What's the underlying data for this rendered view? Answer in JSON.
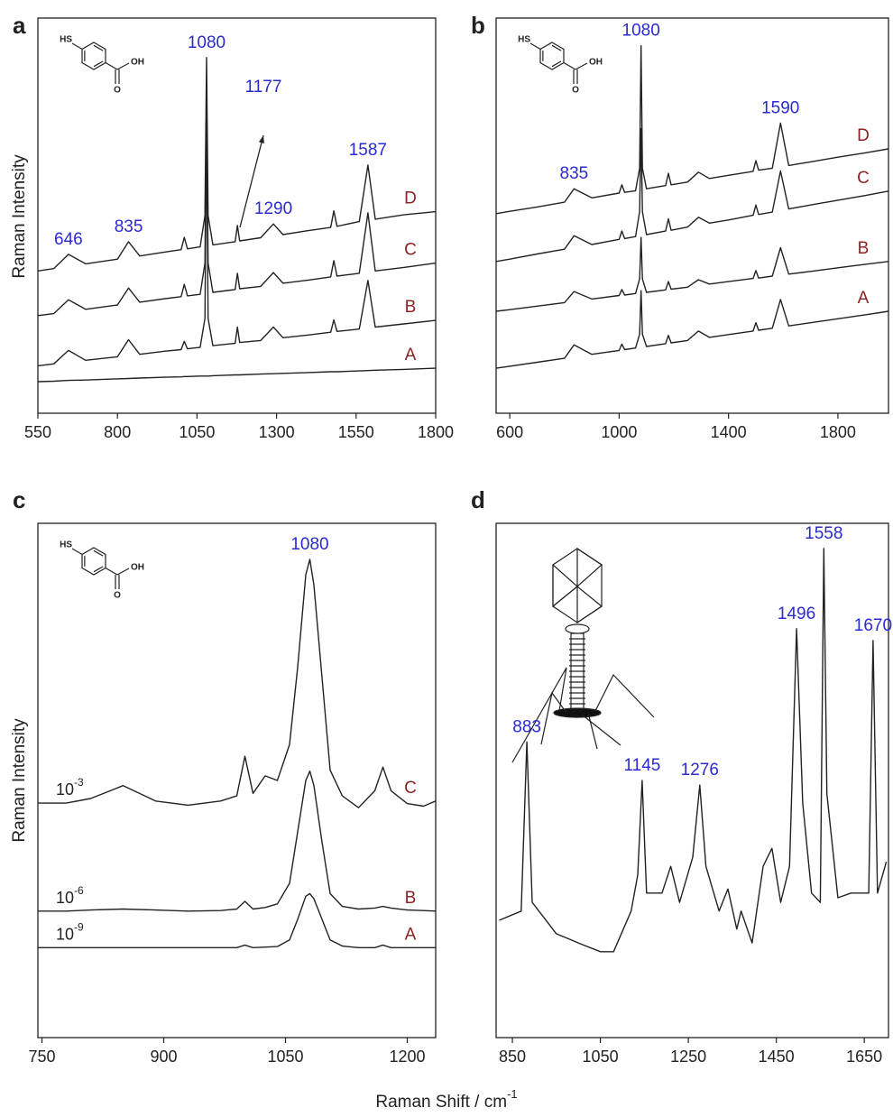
{
  "shared_x_label": {
    "text": "Raman Shift / cm",
    "superscript": "-1"
  },
  "chart_data": [
    {
      "type": "line",
      "panel_label": "a",
      "ylabel": "Raman Intensity",
      "molecule": [
        "HS",
        "OH",
        "O"
      ],
      "peak_label_color": "#2a2ad0",
      "series_label_color": "#8b2323",
      "xlim": [
        550,
        1800
      ],
      "xticks": [
        550,
        800,
        1050,
        1300,
        1550,
        1800
      ],
      "ylim": [
        0,
        100
      ],
      "x": [
        550,
        600,
        646,
        700,
        800,
        835,
        870,
        950,
        1000,
        1010,
        1020,
        1060,
        1075,
        1080,
        1085,
        1100,
        1170,
        1177,
        1184,
        1250,
        1290,
        1320,
        1400,
        1470,
        1480,
        1490,
        1560,
        1587,
        1610,
        1700,
        1800
      ],
      "peak_labels": [
        646,
        835,
        1080,
        1177,
        1290,
        1587
      ],
      "series": [
        {
          "name": "D",
          "color": "#222222",
          "values": [
            36,
            36.6,
            40.2,
            37.8,
            39,
            43.4,
            39.8,
            40.8,
            41.4,
            44.5,
            41.6,
            42.1,
            50,
            90,
            50,
            42.6,
            43.4,
            47.5,
            43.6,
            44.4,
            47.9,
            45.2,
            46.2,
            47,
            51.2,
            47.3,
            48.5,
            62.8,
            49.1,
            50.2,
            51
          ]
        },
        {
          "name": "C",
          "color": "#222222",
          "values": [
            24.7,
            25.2,
            28.7,
            26.3,
            27.4,
            31.7,
            28.1,
            29,
            29.5,
            32.6,
            29.7,
            30.1,
            38,
            82,
            38,
            30.6,
            31.3,
            35.4,
            31.5,
            32.1,
            35.6,
            32.9,
            33.7,
            34.5,
            38.6,
            34.7,
            35.4,
            50.7,
            36,
            36.9,
            38
          ]
        },
        {
          "name": "B",
          "color": "#222222",
          "values": [
            12,
            12.5,
            15.9,
            13.4,
            14.3,
            18.6,
            14.9,
            15.7,
            16.1,
            18.2,
            16.3,
            16.7,
            24,
            72,
            24,
            17.1,
            17.7,
            21.8,
            17.9,
            18.4,
            21.8,
            19.1,
            19.8,
            20.5,
            23.6,
            20.7,
            21.3,
            33.6,
            21.8,
            22.6,
            23.5
          ]
        },
        {
          "name": "A",
          "color": "#222222",
          "values": [
            8,
            8.1,
            8.3,
            8.4,
            8.7,
            8.8,
            8.9,
            9.1,
            9.2,
            9.3,
            9.3,
            9.4,
            9.4,
            9.4,
            9.4,
            9.5,
            9.7,
            9.7,
            9.7,
            9.9,
            10,
            10.1,
            10.3,
            10.5,
            10.5,
            10.5,
            10.7,
            10.8,
            10.9,
            11.1,
            11.4
          ]
        }
      ]
    },
    {
      "type": "line",
      "panel_label": "b",
      "molecule": [
        "HS",
        "OH",
        "O"
      ],
      "peak_label_color": "#2a2ad0",
      "series_label_color": "#8b2323",
      "xlim": [
        550,
        1985
      ],
      "xticks": [
        600,
        1000,
        1400,
        1800
      ],
      "ylim": [
        0,
        100
      ],
      "x": [
        550,
        600,
        700,
        800,
        835,
        900,
        1000,
        1010,
        1020,
        1060,
        1075,
        1080,
        1085,
        1100,
        1170,
        1180,
        1190,
        1250,
        1290,
        1330,
        1400,
        1490,
        1500,
        1510,
        1560,
        1590,
        1620,
        1700,
        1800,
        1900,
        1985
      ],
      "peak_labels": [
        835,
        1080,
        1590
      ],
      "series": [
        {
          "name": "D",
          "color": "#222222",
          "values": [
            50.5,
            51.1,
            52.2,
            53.4,
            56.8,
            54.5,
            55.7,
            57.8,
            55.9,
            56.3,
            62,
            93,
            62,
            56.8,
            57.6,
            60.7,
            57.8,
            58.5,
            61,
            59.4,
            60.2,
            61.2,
            63.9,
            61.5,
            62,
            73.4,
            62.7,
            63.6,
            64.8,
            65.9,
            66.9
          ]
        },
        {
          "name": "C",
          "color": "#222222",
          "values": [
            38.4,
            39,
            40.3,
            41.5,
            44.9,
            42.7,
            44,
            46.1,
            44.2,
            44.7,
            51,
            72,
            51,
            45.2,
            46.1,
            49.2,
            46.3,
            47.1,
            49.6,
            48.1,
            48.9,
            50.1,
            52.7,
            50.3,
            50.9,
            61.3,
            51.7,
            52.7,
            53.9,
            55.1,
            56.2
          ]
        },
        {
          "name": "B",
          "color": "#222222",
          "values": [
            25.8,
            26.2,
            27.1,
            28,
            30.8,
            28.9,
            29.8,
            31.3,
            29.9,
            30.3,
            34,
            44.5,
            34,
            30.6,
            31.2,
            33.3,
            31.4,
            31.9,
            33.8,
            32.7,
            33.3,
            34.1,
            36.1,
            34.2,
            34.7,
            41.9,
            35.2,
            35.9,
            36.8,
            37.7,
            38.4
          ]
        },
        {
          "name": "A",
          "color": "#222222",
          "values": [
            11.4,
            11.9,
            12.9,
            13.9,
            17.3,
            14.9,
            15.9,
            17.5,
            16.1,
            16.5,
            20,
            31,
            20,
            16.9,
            17.6,
            19.7,
            17.8,
            18.4,
            20.8,
            19.2,
            19.9,
            20.8,
            22.9,
            21,
            21.5,
            28.8,
            22.1,
            22.9,
            23.9,
            24.9,
            25.8
          ]
        }
      ]
    },
    {
      "type": "line",
      "panel_label": "c",
      "ylabel": "Raman Intensity",
      "molecule": [
        "HS",
        "OH",
        "O"
      ],
      "peak_label_color": "#2a2ad0",
      "series_label_color": "#8b2323",
      "xlim": [
        745,
        1235
      ],
      "xticks": [
        750,
        900,
        1050,
        1200
      ],
      "ylim": [
        0,
        100
      ],
      "x": [
        745,
        780,
        810,
        850,
        890,
        930,
        970,
        990,
        1000,
        1010,
        1025,
        1040,
        1055,
        1065,
        1075,
        1080,
        1085,
        1095,
        1105,
        1120,
        1140,
        1160,
        1170,
        1180,
        1200,
        1220,
        1235
      ],
      "peak_labels": [
        1080
      ],
      "concentration_labels": [
        {
          "base": "10",
          "exponent": "-3"
        },
        {
          "base": "10",
          "exponent": "-6"
        },
        {
          "base": "10",
          "exponent": "-9"
        }
      ],
      "series": [
        {
          "name": "C",
          "color": "#222222",
          "values": [
            45.6,
            45.6,
            46.5,
            49,
            46,
            45.2,
            46,
            47,
            54.7,
            47.5,
            50.9,
            50,
            57,
            72,
            90,
            93,
            88,
            70,
            52,
            47,
            44.7,
            48,
            52.6,
            48,
            45.5,
            45,
            46
          ]
        },
        {
          "name": "B",
          "color": "#222222",
          "values": [
            24.6,
            24.6,
            24.8,
            25,
            24.8,
            24.6,
            24.7,
            25,
            26.5,
            25,
            25.3,
            26,
            30,
            40,
            50,
            51.8,
            49,
            38,
            28,
            25.5,
            25,
            25.2,
            25.5,
            25.2,
            24.8,
            24.7,
            24.6
          ]
        },
        {
          "name": "A",
          "color": "#222222",
          "values": [
            17.5,
            17.5,
            17.5,
            17.5,
            17.5,
            17.5,
            17.5,
            17.5,
            18,
            17.5,
            17.6,
            17.7,
            19,
            23,
            27.5,
            28,
            27,
            23,
            19,
            17.8,
            17.5,
            17.5,
            18,
            17.5,
            17.5,
            17.5,
            17.5
          ]
        }
      ]
    },
    {
      "type": "line",
      "panel_label": "d",
      "peak_label_color": "#2a2ad0",
      "xlim": [
        813,
        1705
      ],
      "xticks": [
        850,
        1050,
        1250,
        1450,
        1650
      ],
      "ylim": [
        0,
        100
      ],
      "x": [
        820,
        870,
        883,
        895,
        950,
        1000,
        1050,
        1080,
        1120,
        1135,
        1145,
        1155,
        1190,
        1210,
        1230,
        1260,
        1276,
        1290,
        1320,
        1340,
        1360,
        1370,
        1395,
        1420,
        1440,
        1460,
        1480,
        1496,
        1510,
        1530,
        1550,
        1558,
        1565,
        1590,
        1620,
        1660,
        1670,
        1680,
        1700
      ],
      "peak_labels": [
        883,
        1145,
        1276,
        1496,
        1558,
        1670
      ],
      "series": [
        {
          "color": "#222222",
          "values": [
            22.8,
            24.6,
            57.5,
            26.3,
            20.2,
            18.4,
            16.7,
            16.7,
            24.6,
            31.6,
            50,
            28.1,
            28.1,
            33.3,
            26.3,
            35.1,
            49.1,
            33.3,
            24.6,
            28.9,
            21.1,
            24.6,
            18.4,
            33.3,
            36.8,
            26.3,
            33.3,
            79.5,
            45.6,
            28.1,
            26.3,
            95.1,
            47.4,
            27.2,
            28.1,
            28.1,
            77.2,
            28.1,
            34.2
          ]
        }
      ]
    }
  ]
}
